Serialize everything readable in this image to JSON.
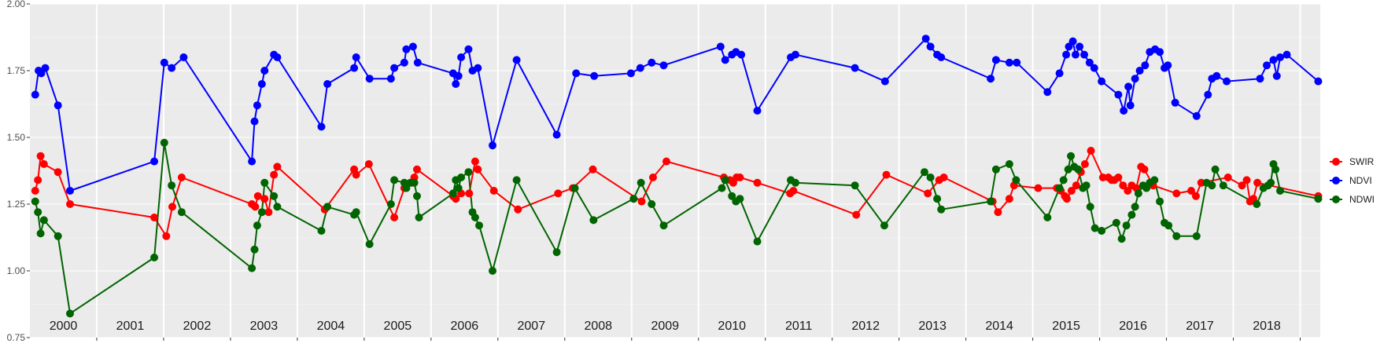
{
  "chart_data": {
    "type": "line",
    "title": "",
    "xlabel": "",
    "ylabel": "",
    "ylim": [
      0.75,
      2.0
    ],
    "xlim": [
      1999.5,
      2018.8
    ],
    "yticks": [
      "0.75",
      "1.00",
      "1.25",
      "1.50",
      "1.75",
      "2.00"
    ],
    "year_labels": [
      "2000",
      "2001",
      "2002",
      "2003",
      "2004",
      "2005",
      "2006",
      "2007",
      "2008",
      "2009",
      "2010",
      "2011",
      "2012",
      "2013",
      "2014",
      "2015",
      "2016",
      "2017",
      "2018"
    ],
    "grid": true,
    "legend_position": "right",
    "series": [
      {
        "name": "SWIR",
        "color": "#ff0000",
        "points": [
          [
            1999.58,
            1.3
          ],
          [
            1999.62,
            1.34
          ],
          [
            1999.66,
            1.43
          ],
          [
            1999.71,
            1.4
          ],
          [
            1999.92,
            1.37
          ],
          [
            2000.1,
            1.25
          ],
          [
            2001.36,
            1.2
          ],
          [
            2001.54,
            1.13
          ],
          [
            2001.63,
            1.24
          ],
          [
            2001.77,
            1.35
          ],
          [
            2002.82,
            1.25
          ],
          [
            2002.87,
            1.24
          ],
          [
            2002.91,
            1.28
          ],
          [
            2003.01,
            1.27
          ],
          [
            2003.07,
            1.22
          ],
          [
            2003.15,
            1.36
          ],
          [
            2003.2,
            1.39
          ],
          [
            2003.91,
            1.23
          ],
          [
            2004.35,
            1.38
          ],
          [
            2004.38,
            1.36
          ],
          [
            2004.57,
            1.4
          ],
          [
            2004.95,
            1.2
          ],
          [
            2005.1,
            1.31
          ],
          [
            2005.21,
            1.33
          ],
          [
            2005.25,
            1.35
          ],
          [
            2005.29,
            1.38
          ],
          [
            2005.83,
            1.28
          ],
          [
            2005.87,
            1.27
          ],
          [
            2005.95,
            1.29
          ],
          [
            2006.07,
            1.29
          ],
          [
            2006.16,
            1.41
          ],
          [
            2006.2,
            1.38
          ],
          [
            2006.44,
            1.3
          ],
          [
            2006.8,
            1.23
          ],
          [
            2007.4,
            1.29
          ],
          [
            2007.62,
            1.31
          ],
          [
            2007.92,
            1.38
          ],
          [
            2008.65,
            1.26
          ],
          [
            2008.82,
            1.35
          ],
          [
            2009.02,
            1.41
          ],
          [
            2009.88,
            1.35
          ],
          [
            2009.97,
            1.34
          ],
          [
            2010.02,
            1.33
          ],
          [
            2010.07,
            1.35
          ],
          [
            2010.12,
            1.35
          ],
          [
            2010.38,
            1.33
          ],
          [
            2010.87,
            1.29
          ],
          [
            2010.92,
            1.3
          ],
          [
            2011.86,
            1.21
          ],
          [
            2012.31,
            1.36
          ],
          [
            2012.93,
            1.29
          ],
          [
            2013.1,
            1.34
          ],
          [
            2013.17,
            1.35
          ],
          [
            2013.9,
            1.26
          ],
          [
            2013.98,
            1.22
          ],
          [
            2014.15,
            1.27
          ],
          [
            2014.22,
            1.32
          ],
          [
            2014.58,
            1.31
          ],
          [
            2014.86,
            1.31
          ],
          [
            2014.92,
            1.3
          ],
          [
            2014.98,
            1.28
          ],
          [
            2015.01,
            1.27
          ],
          [
            2015.08,
            1.3
          ],
          [
            2015.15,
            1.32
          ],
          [
            2015.22,
            1.37
          ],
          [
            2015.28,
            1.4
          ],
          [
            2015.37,
            1.45
          ],
          [
            2015.55,
            1.35
          ],
          [
            2015.63,
            1.35
          ],
          [
            2015.68,
            1.34
          ],
          [
            2015.72,
            1.34
          ],
          [
            2015.78,
            1.35
          ],
          [
            2015.85,
            1.32
          ],
          [
            2015.92,
            1.3
          ],
          [
            2015.98,
            1.32
          ],
          [
            2016.05,
            1.31
          ],
          [
            2016.12,
            1.39
          ],
          [
            2016.17,
            1.38
          ],
          [
            2016.3,
            1.32
          ],
          [
            2016.65,
            1.29
          ],
          [
            2016.87,
            1.3
          ],
          [
            2016.94,
            1.28
          ],
          [
            2017.02,
            1.33
          ],
          [
            2017.42,
            1.35
          ],
          [
            2017.63,
            1.32
          ],
          [
            2017.7,
            1.34
          ],
          [
            2017.75,
            1.26
          ],
          [
            2017.8,
            1.27
          ],
          [
            2017.86,
            1.33
          ],
          [
            2018.77,
            1.28
          ]
        ]
      },
      {
        "name": "NDVI",
        "color": "#0000ff",
        "points": [
          [
            1999.58,
            1.66
          ],
          [
            1999.63,
            1.75
          ],
          [
            1999.67,
            1.74
          ],
          [
            1999.73,
            1.76
          ],
          [
            1999.92,
            1.62
          ],
          [
            2000.1,
            1.3
          ],
          [
            2001.36,
            1.41
          ],
          [
            2001.51,
            1.78
          ],
          [
            2001.62,
            1.76
          ],
          [
            2001.8,
            1.8
          ],
          [
            2002.82,
            1.41
          ],
          [
            2002.86,
            1.56
          ],
          [
            2002.9,
            1.62
          ],
          [
            2002.97,
            1.7
          ],
          [
            2003.01,
            1.75
          ],
          [
            2003.15,
            1.81
          ],
          [
            2003.2,
            1.8
          ],
          [
            2003.86,
            1.54
          ],
          [
            2003.95,
            1.7
          ],
          [
            2004.35,
            1.76
          ],
          [
            2004.38,
            1.8
          ],
          [
            2004.58,
            1.72
          ],
          [
            2004.9,
            1.72
          ],
          [
            2004.95,
            1.76
          ],
          [
            2005.1,
            1.78
          ],
          [
            2005.13,
            1.83
          ],
          [
            2005.23,
            1.84
          ],
          [
            2005.3,
            1.78
          ],
          [
            2005.83,
            1.74
          ],
          [
            2005.87,
            1.7
          ],
          [
            2005.91,
            1.73
          ],
          [
            2005.95,
            1.8
          ],
          [
            2006.06,
            1.83
          ],
          [
            2006.12,
            1.75
          ],
          [
            2006.2,
            1.76
          ],
          [
            2006.42,
            1.47
          ],
          [
            2006.78,
            1.79
          ],
          [
            2007.38,
            1.51
          ],
          [
            2007.67,
            1.74
          ],
          [
            2007.94,
            1.73
          ],
          [
            2008.49,
            1.74
          ],
          [
            2008.63,
            1.76
          ],
          [
            2008.8,
            1.78
          ],
          [
            2008.98,
            1.77
          ],
          [
            2009.83,
            1.84
          ],
          [
            2009.9,
            1.79
          ],
          [
            2010.0,
            1.81
          ],
          [
            2010.06,
            1.82
          ],
          [
            2010.14,
            1.81
          ],
          [
            2010.38,
            1.6
          ],
          [
            2010.88,
            1.8
          ],
          [
            2010.95,
            1.81
          ],
          [
            2011.84,
            1.76
          ],
          [
            2012.29,
            1.71
          ],
          [
            2012.9,
            1.87
          ],
          [
            2012.97,
            1.84
          ],
          [
            2013.07,
            1.81
          ],
          [
            2013.13,
            1.8
          ],
          [
            2013.87,
            1.72
          ],
          [
            2013.95,
            1.79
          ],
          [
            2014.15,
            1.78
          ],
          [
            2014.26,
            1.78
          ],
          [
            2014.72,
            1.67
          ],
          [
            2014.9,
            1.74
          ],
          [
            2015.0,
            1.81
          ],
          [
            2015.04,
            1.84
          ],
          [
            2015.1,
            1.86
          ],
          [
            2015.14,
            1.81
          ],
          [
            2015.2,
            1.84
          ],
          [
            2015.27,
            1.81
          ],
          [
            2015.35,
            1.78
          ],
          [
            2015.42,
            1.76
          ],
          [
            2015.53,
            1.71
          ],
          [
            2015.78,
            1.66
          ],
          [
            2015.86,
            1.6
          ],
          [
            2015.93,
            1.69
          ],
          [
            2015.96,
            1.62
          ],
          [
            2016.03,
            1.72
          ],
          [
            2016.1,
            1.75
          ],
          [
            2016.18,
            1.77
          ],
          [
            2016.25,
            1.82
          ],
          [
            2016.33,
            1.83
          ],
          [
            2016.4,
            1.82
          ],
          [
            2016.47,
            1.76
          ],
          [
            2016.52,
            1.77
          ],
          [
            2016.63,
            1.63
          ],
          [
            2016.95,
            1.58
          ],
          [
            2017.12,
            1.66
          ],
          [
            2017.18,
            1.72
          ],
          [
            2017.25,
            1.73
          ],
          [
            2017.4,
            1.71
          ],
          [
            2017.9,
            1.72
          ],
          [
            2018.0,
            1.77
          ],
          [
            2018.1,
            1.79
          ],
          [
            2018.15,
            1.73
          ],
          [
            2018.2,
            1.8
          ],
          [
            2018.3,
            1.81
          ],
          [
            2018.77,
            1.71
          ]
        ]
      },
      {
        "name": "NDWI",
        "color": "#006400",
        "points": [
          [
            1999.58,
            1.26
          ],
          [
            1999.62,
            1.22
          ],
          [
            1999.66,
            1.14
          ],
          [
            1999.71,
            1.19
          ],
          [
            1999.92,
            1.13
          ],
          [
            2000.1,
            0.84
          ],
          [
            2001.36,
            1.05
          ],
          [
            2001.51,
            1.48
          ],
          [
            2001.62,
            1.32
          ],
          [
            2001.77,
            1.22
          ],
          [
            2002.82,
            1.01
          ],
          [
            2002.86,
            1.08
          ],
          [
            2002.9,
            1.17
          ],
          [
            2002.97,
            1.22
          ],
          [
            2003.01,
            1.33
          ],
          [
            2003.15,
            1.28
          ],
          [
            2003.2,
            1.24
          ],
          [
            2003.86,
            1.15
          ],
          [
            2003.95,
            1.24
          ],
          [
            2004.35,
            1.21
          ],
          [
            2004.38,
            1.22
          ],
          [
            2004.58,
            1.1
          ],
          [
            2004.9,
            1.25
          ],
          [
            2004.95,
            1.34
          ],
          [
            2005.1,
            1.33
          ],
          [
            2005.13,
            1.31
          ],
          [
            2005.19,
            1.33
          ],
          [
            2005.25,
            1.33
          ],
          [
            2005.29,
            1.28
          ],
          [
            2005.32,
            1.2
          ],
          [
            2005.83,
            1.29
          ],
          [
            2005.87,
            1.34
          ],
          [
            2005.91,
            1.31
          ],
          [
            2005.95,
            1.35
          ],
          [
            2006.06,
            1.37
          ],
          [
            2006.12,
            1.22
          ],
          [
            2006.16,
            1.2
          ],
          [
            2006.22,
            1.17
          ],
          [
            2006.42,
            1.0
          ],
          [
            2006.78,
            1.34
          ],
          [
            2007.38,
            1.07
          ],
          [
            2007.65,
            1.31
          ],
          [
            2007.93,
            1.19
          ],
          [
            2008.53,
            1.27
          ],
          [
            2008.64,
            1.33
          ],
          [
            2008.8,
            1.25
          ],
          [
            2008.98,
            1.17
          ],
          [
            2009.85,
            1.31
          ],
          [
            2009.9,
            1.34
          ],
          [
            2010.0,
            1.28
          ],
          [
            2010.06,
            1.26
          ],
          [
            2010.12,
            1.27
          ],
          [
            2010.38,
            1.11
          ],
          [
            2010.88,
            1.34
          ],
          [
            2010.95,
            1.33
          ],
          [
            2011.84,
            1.32
          ],
          [
            2012.28,
            1.17
          ],
          [
            2012.88,
            1.37
          ],
          [
            2012.97,
            1.35
          ],
          [
            2013.07,
            1.27
          ],
          [
            2013.13,
            1.23
          ],
          [
            2013.87,
            1.26
          ],
          [
            2013.95,
            1.38
          ],
          [
            2014.15,
            1.4
          ],
          [
            2014.25,
            1.34
          ],
          [
            2014.72,
            1.2
          ],
          [
            2014.9,
            1.31
          ],
          [
            2014.96,
            1.34
          ],
          [
            2015.03,
            1.38
          ],
          [
            2015.07,
            1.43
          ],
          [
            2015.12,
            1.39
          ],
          [
            2015.18,
            1.38
          ],
          [
            2015.25,
            1.31
          ],
          [
            2015.3,
            1.32
          ],
          [
            2015.36,
            1.24
          ],
          [
            2015.43,
            1.16
          ],
          [
            2015.53,
            1.15
          ],
          [
            2015.75,
            1.18
          ],
          [
            2015.83,
            1.12
          ],
          [
            2015.9,
            1.17
          ],
          [
            2015.98,
            1.21
          ],
          [
            2016.03,
            1.24
          ],
          [
            2016.08,
            1.29
          ],
          [
            2016.15,
            1.32
          ],
          [
            2016.2,
            1.31
          ],
          [
            2016.25,
            1.33
          ],
          [
            2016.32,
            1.34
          ],
          [
            2016.4,
            1.26
          ],
          [
            2016.47,
            1.18
          ],
          [
            2016.53,
            1.17
          ],
          [
            2016.65,
            1.13
          ],
          [
            2016.95,
            1.13
          ],
          [
            2017.1,
            1.33
          ],
          [
            2017.18,
            1.32
          ],
          [
            2017.23,
            1.38
          ],
          [
            2017.35,
            1.32
          ],
          [
            2017.85,
            1.25
          ],
          [
            2017.95,
            1.31
          ],
          [
            2018.02,
            1.32
          ],
          [
            2018.06,
            1.33
          ],
          [
            2018.1,
            1.4
          ],
          [
            2018.13,
            1.38
          ],
          [
            2018.2,
            1.3
          ],
          [
            2018.77,
            1.27
          ]
        ]
      }
    ]
  }
}
